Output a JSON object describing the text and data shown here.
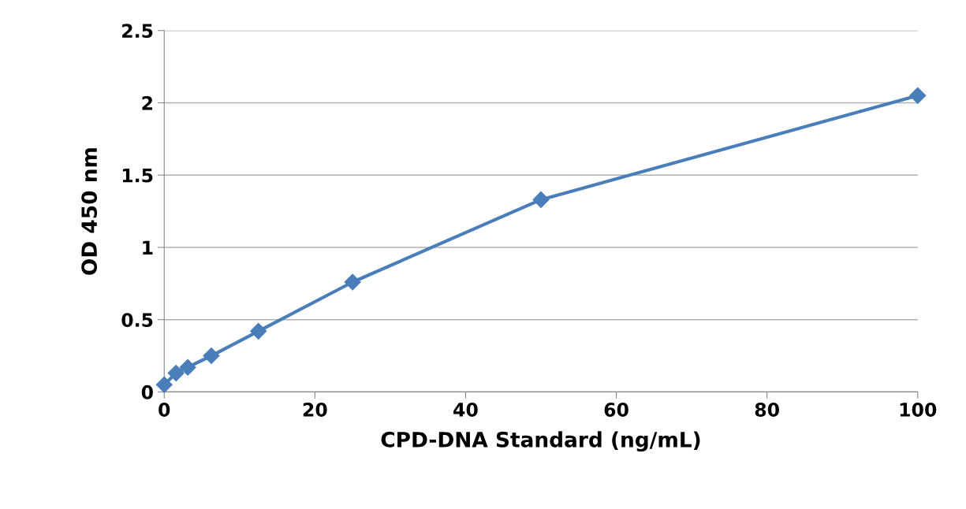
{
  "chart_data": {
    "type": "line",
    "xlabel": "CPD-DNA Standard (ng/mL)",
    "ylabel": "OD 450 nm",
    "x": [
      0,
      1.5625,
      3.125,
      6.25,
      12.5,
      25,
      50,
      100
    ],
    "series": [
      {
        "color": "#4a7ebb",
        "values": [
          0.05,
          0.13,
          0.17,
          0.25,
          0.42,
          0.76,
          1.33,
          2.05
        ]
      }
    ],
    "xlim": [
      0,
      100
    ],
    "xticks": [
      0,
      20,
      40,
      60,
      80,
      100
    ],
    "ylim": [
      0,
      2.5
    ],
    "yticks": [
      0,
      0.5,
      1,
      1.5,
      2,
      2.5
    ],
    "grid": "y",
    "marker": "diamond",
    "line_style": "solid"
  }
}
